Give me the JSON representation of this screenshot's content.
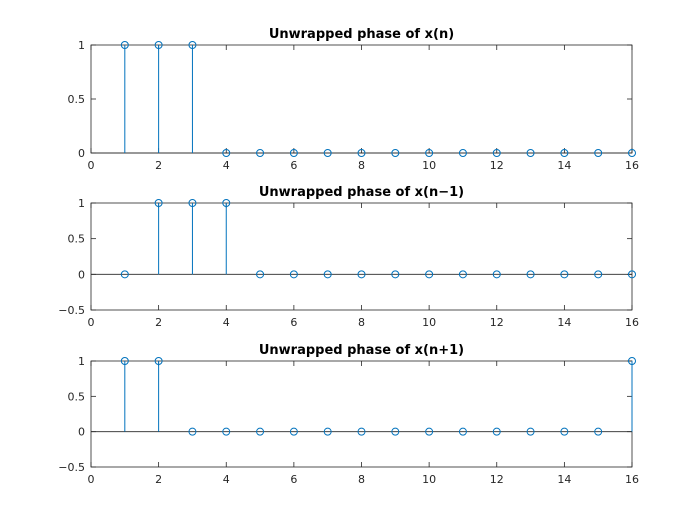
{
  "chart_data": [
    {
      "type": "stem",
      "title": "Unwrapped phase of x(n)",
      "xlim": [
        0,
        16
      ],
      "ylim": [
        0,
        1
      ],
      "xticks": [
        0,
        2,
        4,
        6,
        8,
        10,
        12,
        14,
        16
      ],
      "yticks": [
        0,
        0.5,
        1
      ],
      "x": [
        1,
        2,
        3,
        4,
        5,
        6,
        7,
        8,
        9,
        10,
        11,
        12,
        13,
        14,
        15,
        16
      ],
      "values": [
        1,
        1,
        1,
        0,
        0,
        0,
        0,
        0,
        0,
        0,
        0,
        0,
        0,
        0,
        0,
        0
      ],
      "color": "#0072BD"
    },
    {
      "type": "stem",
      "title": "Unwrapped phase of x(n−1)",
      "xlim": [
        0,
        16
      ],
      "ylim": [
        -0.5,
        1
      ],
      "xticks": [
        0,
        2,
        4,
        6,
        8,
        10,
        12,
        14,
        16
      ],
      "yticks": [
        -0.5,
        0,
        0.5,
        1
      ],
      "x": [
        1,
        2,
        3,
        4,
        5,
        6,
        7,
        8,
        9,
        10,
        11,
        12,
        13,
        14,
        15,
        16
      ],
      "values": [
        0,
        1,
        1,
        1,
        0,
        0,
        0,
        0,
        0,
        0,
        0,
        0,
        0,
        0,
        0,
        0
      ],
      "color": "#0072BD"
    },
    {
      "type": "stem",
      "title": "Unwrapped phase of x(n+1)",
      "xlim": [
        0,
        16
      ],
      "ylim": [
        -0.5,
        1
      ],
      "xticks": [
        0,
        2,
        4,
        6,
        8,
        10,
        12,
        14,
        16
      ],
      "yticks": [
        -0.5,
        0,
        0.5,
        1
      ],
      "x": [
        1,
        2,
        3,
        4,
        5,
        6,
        7,
        8,
        9,
        10,
        11,
        12,
        13,
        14,
        15,
        16
      ],
      "values": [
        1,
        1,
        0,
        0,
        0,
        0,
        0,
        0,
        0,
        0,
        0,
        0,
        0,
        0,
        0,
        1
      ],
      "color": "#0072BD"
    }
  ]
}
